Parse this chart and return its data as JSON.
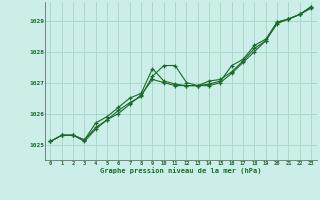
{
  "xlabel": "Graphe pression niveau de la mer (hPa)",
  "background_color": "#cceee8",
  "plot_bg_color": "#cceee8",
  "grid_color": "#aad8cc",
  "line_color": "#1a6b2a",
  "xlim": [
    -0.5,
    23.5
  ],
  "ylim": [
    1024.5,
    1029.6
  ],
  "yticks": [
    1025,
    1026,
    1027,
    1028,
    1029
  ],
  "xticks": [
    0,
    1,
    2,
    3,
    4,
    5,
    6,
    7,
    8,
    9,
    10,
    11,
    12,
    13,
    14,
    15,
    16,
    17,
    18,
    19,
    20,
    21,
    22,
    23
  ],
  "series1_x": [
    0,
    1,
    2,
    3,
    4,
    5,
    6,
    7,
    8,
    9,
    10,
    11,
    12,
    13,
    14,
    15,
    16,
    17,
    18,
    19,
    20,
    21,
    22,
    23
  ],
  "series1_y": [
    1025.1,
    1025.3,
    1025.3,
    1025.1,
    1025.5,
    1025.8,
    1026.0,
    1026.3,
    1026.6,
    1027.1,
    1027.0,
    1026.9,
    1026.9,
    1026.9,
    1027.05,
    1027.1,
    1027.35,
    1027.7,
    1028.1,
    1028.35,
    1028.95,
    1029.05,
    1029.2,
    1029.4
  ],
  "series2_x": [
    0,
    1,
    2,
    3,
    4,
    5,
    6,
    7,
    8,
    9,
    10,
    11,
    12,
    13,
    14,
    15,
    16,
    17,
    18,
    19,
    20,
    21,
    22,
    23
  ],
  "series2_y": [
    1025.1,
    1025.3,
    1025.3,
    1025.15,
    1025.7,
    1025.9,
    1026.2,
    1026.5,
    1026.65,
    1027.45,
    1027.05,
    1026.95,
    1026.9,
    1026.9,
    1026.95,
    1027.05,
    1027.55,
    1027.75,
    1028.2,
    1028.4,
    1028.95,
    1029.05,
    1029.2,
    1029.45
  ],
  "series3_x": [
    0,
    1,
    2,
    3,
    4,
    5,
    6,
    7,
    8,
    9,
    10,
    11,
    12,
    13,
    14,
    15,
    16,
    17,
    18,
    19,
    20,
    21,
    22,
    23
  ],
  "series3_y": [
    1025.1,
    1025.3,
    1025.3,
    1025.15,
    1025.55,
    1025.8,
    1026.1,
    1026.35,
    1026.55,
    1027.2,
    1027.55,
    1027.55,
    1027.0,
    1026.9,
    1026.9,
    1027.0,
    1027.3,
    1027.65,
    1028.0,
    1028.35,
    1028.9,
    1029.05,
    1029.2,
    1029.45
  ]
}
